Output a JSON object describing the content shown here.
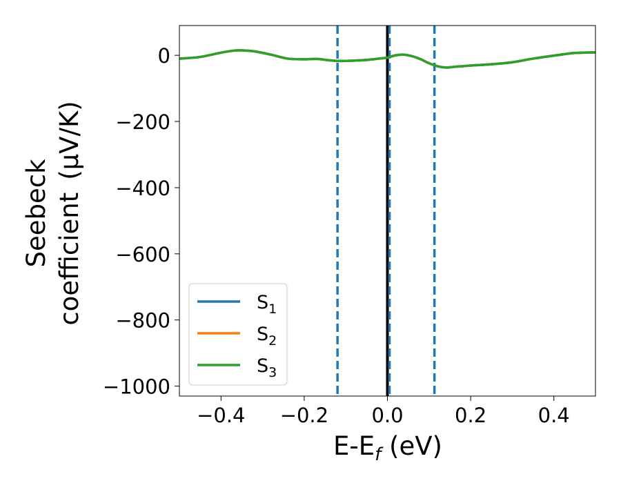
{
  "chart_data": {
    "type": "line",
    "title": "",
    "xlabel": {
      "main": "E-E",
      "sub": "f",
      "unit": " (eV)"
    },
    "ylabel": {
      "line1": "Seebeck",
      "line2": "coefficient",
      "unit": "(μV/K)"
    },
    "xlim": [
      -0.5,
      0.5
    ],
    "ylim": [
      -1030,
      90
    ],
    "xticks": [
      -0.4,
      -0.2,
      0.0,
      0.2,
      0.4
    ],
    "xtick_labels": [
      "−0.4",
      "−0.2",
      "0.0",
      "0.2",
      "0.4"
    ],
    "yticks": [
      0,
      -200,
      -400,
      -600,
      -800,
      -1000
    ],
    "ytick_labels": [
      "0",
      "−200",
      "−400",
      "−600",
      "−800",
      "−1000"
    ],
    "grid": false,
    "legend_position": "lower-left",
    "x": [
      -0.5,
      -0.45,
      -0.4,
      -0.37,
      -0.35,
      -0.32,
      -0.28,
      -0.24,
      -0.2,
      -0.17,
      -0.14,
      -0.12,
      -0.1,
      -0.08,
      -0.05,
      -0.02,
      0.0,
      0.02,
      0.04,
      0.06,
      0.08,
      0.1,
      0.12,
      0.14,
      0.16,
      0.2,
      0.25,
      0.3,
      0.35,
      0.4,
      0.45,
      0.5
    ],
    "series": [
      {
        "name": "S",
        "sub": "1",
        "color": "#1f77b4",
        "values": [
          -10,
          -5,
          8,
          14,
          15,
          12,
          2,
          -10,
          -12,
          -11,
          -15,
          -17,
          -17,
          -16,
          -14,
          -10,
          -7,
          0,
          2,
          -3,
          -12,
          -24,
          -33,
          -37,
          -35,
          -31,
          -27,
          -21,
          -10,
          -1,
          7,
          9
        ]
      },
      {
        "name": "S",
        "sub": "2",
        "color": "#ff7f0e",
        "values": [
          -10,
          -5,
          8,
          14,
          15,
          12,
          2,
          -10,
          -12,
          -11,
          -15,
          -17,
          -17,
          -16,
          -14,
          -10,
          -7,
          0,
          2,
          -3,
          -12,
          -24,
          -33,
          -37,
          -35,
          -31,
          -27,
          -21,
          -10,
          -1,
          7,
          9
        ]
      },
      {
        "name": "S",
        "sub": "3",
        "color": "#2ca02c",
        "values": [
          -10,
          -5,
          8,
          14,
          15,
          12,
          2,
          -10,
          -12,
          -11,
          -15,
          -17,
          -17,
          -16,
          -14,
          -10,
          -7,
          0,
          2,
          -3,
          -12,
          -24,
          -33,
          -37,
          -35,
          -31,
          -27,
          -21,
          -10,
          -1,
          7,
          9
        ]
      }
    ],
    "vlines": [
      {
        "x": -0.12,
        "style": "dashed",
        "color": "#1f77b4"
      },
      {
        "x": 0.0,
        "style": "solid",
        "color": "#000000"
      },
      {
        "x": 0.005,
        "style": "dashed",
        "color": "#1f77b4"
      },
      {
        "x": 0.113,
        "style": "dashed",
        "color": "#1f77b4"
      }
    ]
  }
}
